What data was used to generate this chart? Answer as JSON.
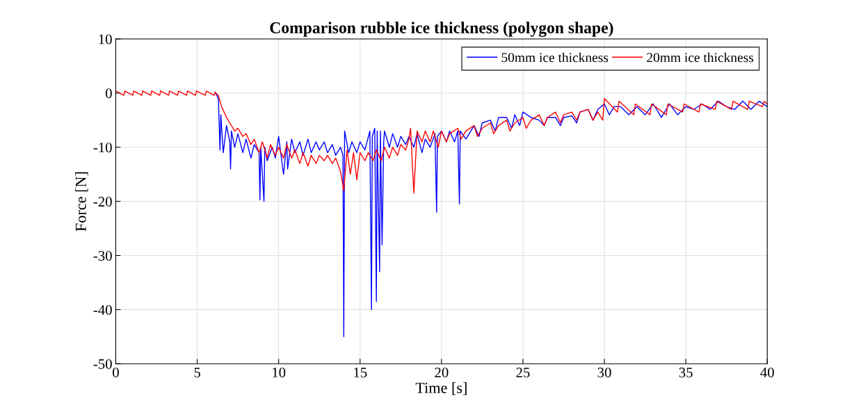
{
  "chart_data": {
    "type": "line",
    "title": "Comparison rubble ice thickness (polygon shape)",
    "xlabel": "Time [s]",
    "ylabel": "Force [N]",
    "xlim": [
      0,
      40
    ],
    "ylim": [
      -50,
      10
    ],
    "xticks": [
      0,
      5,
      10,
      15,
      20,
      25,
      30,
      35,
      40
    ],
    "yticks": [
      -50,
      -40,
      -30,
      -20,
      -10,
      0,
      10
    ],
    "grid": true,
    "legend": "top right",
    "line_style": "solid",
    "marker": "none",
    "series": [
      {
        "name": "50mm ice thickness",
        "color": "#0000ff",
        "x": [
          6.1,
          6.3,
          6.4,
          6.45,
          6.6,
          6.8,
          7.0,
          7.05,
          7.1,
          7.3,
          7.5,
          7.8,
          8.0,
          8.3,
          8.5,
          8.8,
          8.85,
          8.9,
          9.1,
          9.15,
          9.3,
          9.6,
          9.8,
          10.0,
          10.3,
          10.5,
          10.55,
          10.8,
          11.0,
          11.3,
          11.5,
          11.8,
          12.0,
          12.3,
          12.5,
          12.8,
          13.0,
          13.3,
          13.5,
          13.8,
          13.95,
          14.0,
          14.05,
          14.3,
          14.5,
          14.8,
          15.0,
          15.3,
          15.6,
          15.7,
          15.75,
          15.9,
          16.0,
          16.05,
          16.2,
          16.25,
          16.35,
          16.45,
          16.5,
          16.8,
          17.0,
          17.3,
          17.5,
          17.8,
          18.0,
          18.3,
          18.5,
          18.8,
          19.0,
          19.3,
          19.6,
          19.7,
          19.75,
          20.0,
          20.3,
          20.5,
          20.8,
          21.0,
          21.1,
          21.15,
          21.5,
          22.0,
          22.3,
          22.5,
          23.0,
          23.3,
          23.5,
          24.0,
          24.3,
          24.5,
          24.8,
          25.0,
          25.5,
          26.0,
          26.3,
          26.5,
          27.0,
          27.3,
          27.5,
          28.0,
          28.3,
          28.5,
          29.0,
          29.3,
          29.6,
          30.0,
          30.3,
          30.6,
          31.0,
          31.5,
          32.0,
          32.5,
          33.0,
          33.5,
          34.0,
          34.5,
          35.0,
          35.5,
          36.0,
          36.5,
          37.0,
          37.5,
          38.0,
          38.5,
          39.0,
          39.5,
          40.0
        ],
        "values": [
          0.2,
          -1,
          -10.5,
          -4,
          -11,
          -6,
          -9,
          -14,
          -7,
          -10,
          -7.5,
          -11,
          -8.5,
          -12,
          -9.5,
          -11,
          -19.7,
          -10,
          -20,
          -10,
          -12.5,
          -10,
          -12,
          -8,
          -15,
          -9,
          -14,
          -8.5,
          -11,
          -9,
          -11.5,
          -8.5,
          -11,
          -9,
          -10.5,
          -9,
          -11,
          -9.5,
          -11.5,
          -10,
          -11.5,
          -45,
          -7,
          -11,
          -9,
          -11,
          -9,
          -10.5,
          -7,
          -40,
          -8,
          -6.5,
          -38.5,
          -7,
          -33,
          -7,
          -28,
          -9,
          -7,
          -10,
          -7.5,
          -10,
          -8,
          -9.5,
          -8,
          -10,
          -7.5,
          -11,
          -8.5,
          -10,
          -7.5,
          -22,
          -8,
          -7,
          -9,
          -7,
          -9,
          -7,
          -20.5,
          -7,
          -8.5,
          -6,
          -8,
          -5.5,
          -5,
          -7,
          -4.5,
          -4.5,
          -6.5,
          -4,
          -6,
          -3.5,
          -4.5,
          -5,
          -6,
          -4.5,
          -4.5,
          -6,
          -4.5,
          -4.2,
          -5.5,
          -3.5,
          -3,
          -5,
          -3,
          -2,
          -4,
          -2.5,
          -2.5,
          -4,
          -2.5,
          -4,
          -2,
          -4.5,
          -2,
          -4,
          -2.5,
          -3,
          -2,
          -3,
          -1.5,
          -2.5,
          -3,
          -1.5,
          -3,
          -1.5,
          -2.5
        ]
      },
      {
        "name": "20mm ice thickness",
        "color": "#ff0000",
        "x": [
          0,
          0.5,
          0.55,
          1.05,
          1.1,
          1.6,
          1.65,
          2.15,
          2.2,
          2.7,
          2.75,
          3.25,
          3.3,
          3.8,
          3.85,
          4.35,
          4.4,
          4.9,
          4.95,
          5.5,
          5.55,
          6.05,
          6.1,
          6.3,
          6.5,
          6.8,
          7.0,
          7.3,
          7.5,
          7.8,
          8.0,
          8.3,
          8.5,
          8.8,
          9.0,
          9.3,
          9.5,
          9.8,
          10.0,
          10.3,
          10.5,
          10.8,
          11.0,
          11.3,
          11.5,
          11.8,
          12.0,
          12.3,
          12.5,
          12.8,
          13.0,
          13.3,
          13.5,
          13.8,
          14.0,
          14.2,
          14.4,
          14.6,
          14.8,
          15.0,
          15.3,
          15.5,
          15.8,
          16.0,
          16.3,
          16.5,
          16.8,
          17.0,
          17.3,
          17.5,
          17.8,
          18.0,
          18.1,
          18.3,
          18.5,
          18.8,
          19.0,
          19.3,
          19.5,
          19.8,
          20.0,
          20.3,
          20.5,
          21.0,
          21.2,
          21.5,
          22.0,
          22.2,
          22.5,
          23.0,
          23.2,
          23.5,
          24.0,
          24.2,
          24.5,
          25.0,
          25.2,
          25.5,
          26.0,
          26.3,
          26.5,
          27.0,
          27.3,
          27.5,
          28.0,
          28.3,
          28.5,
          29.0,
          29.3,
          29.6,
          29.9,
          30.0,
          30.8,
          30.9,
          31.8,
          31.9,
          32.8,
          32.9,
          33.8,
          33.9,
          34.8,
          34.9,
          35.8,
          35.9,
          36.8,
          36.9,
          37.8,
          37.9,
          38.8,
          38.9,
          39.7,
          39.8,
          40.0
        ],
        "values": [
          0.4,
          -0.4,
          0.4,
          -0.4,
          0.4,
          -0.4,
          0.4,
          -0.4,
          0.4,
          -0.4,
          0.4,
          -0.4,
          0.4,
          -0.4,
          0.4,
          -0.4,
          0.4,
          -0.4,
          0.4,
          -0.4,
          0.4,
          -0.4,
          0.2,
          -0.5,
          -2.5,
          -4.5,
          -5.5,
          -7,
          -6.5,
          -8,
          -7.5,
          -9.5,
          -8.5,
          -11,
          -9,
          -12,
          -9.5,
          -11.5,
          -10,
          -12,
          -9.5,
          -12,
          -10.5,
          -13,
          -11,
          -13.5,
          -11.5,
          -13,
          -11.5,
          -12.5,
          -11.5,
          -13,
          -12,
          -14.5,
          -18,
          -10.5,
          -15,
          -11,
          -16,
          -11,
          -12.5,
          -11,
          -12.5,
          -10.5,
          -12.5,
          -10,
          -12,
          -10,
          -11.5,
          -9.5,
          -10.5,
          -8.5,
          -6.5,
          -18.5,
          -7,
          -9,
          -7,
          -9,
          -7,
          -10,
          -7,
          -9,
          -7.5,
          -6.5,
          -8.5,
          -7,
          -6,
          -8,
          -6.5,
          -5.5,
          -7.5,
          -6,
          -5,
          -7,
          -5.5,
          -4.5,
          -6.5,
          -5,
          -4,
          -6,
          -4.5,
          -3.5,
          -5.5,
          -4,
          -3.5,
          -5,
          -3.5,
          -3,
          -5,
          -3.5,
          -5,
          -1,
          -3.5,
          -1.5,
          -4,
          -2,
          -4,
          -2,
          -4,
          -2,
          -3.5,
          -2,
          -3.5,
          -2,
          -3,
          -1.5,
          -3,
          -1.5,
          -3,
          -1.5,
          -2.5,
          -1.5,
          -2
        ]
      }
    ]
  }
}
